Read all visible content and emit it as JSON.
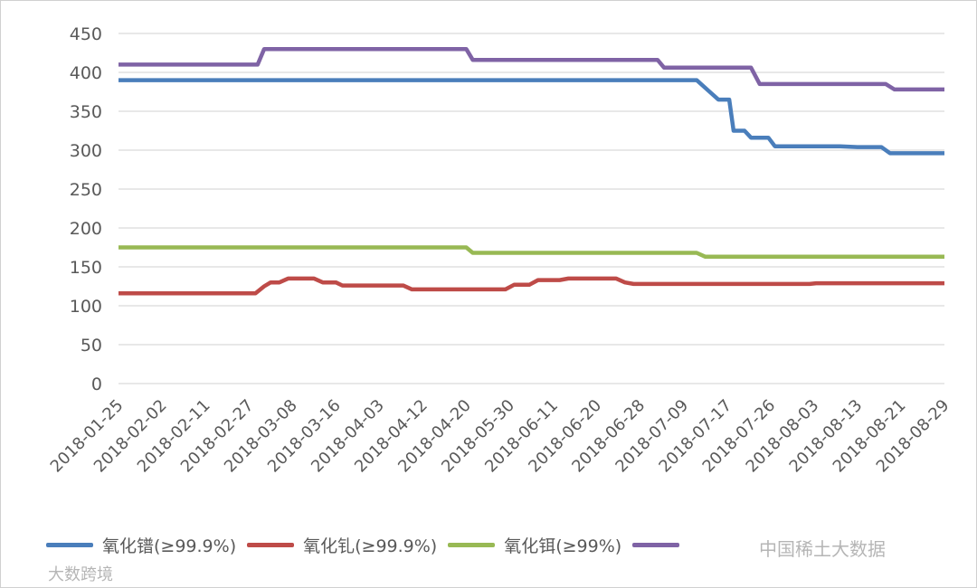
{
  "chart_data": {
    "type": "line",
    "title": "",
    "xlabel": "",
    "ylabel": "",
    "ylim": [
      0,
      450
    ],
    "yticks": [
      0,
      50,
      100,
      150,
      200,
      250,
      300,
      350,
      400,
      450
    ],
    "grid": "horizontal",
    "legend_position": "bottom",
    "x": [
      "2018-01-25",
      "2018-02-02",
      "2018-02-11",
      "2018-02-27",
      "2018-03-08",
      "2018-03-16",
      "2018-04-03",
      "2018-04-12",
      "2018-04-20",
      "2018-05-30",
      "2018-06-11",
      "2018-06-20",
      "2018-06-28",
      "2018-07-09",
      "2018-07-17",
      "2018-07-26",
      "2018-08-03",
      "2018-08-13",
      "2018-08-21",
      "2018-08-29"
    ],
    "series": [
      {
        "name": "氧化镨(≥99.9%)",
        "color": "#4a7ebb",
        "points": [
          [
            0,
            390
          ],
          [
            13.3,
            390
          ],
          [
            13.6,
            375
          ],
          [
            13.8,
            365
          ],
          [
            14.05,
            365
          ],
          [
            14.15,
            325
          ],
          [
            14.4,
            325
          ],
          [
            14.55,
            316
          ],
          [
            14.95,
            316
          ],
          [
            15.1,
            305
          ],
          [
            16.6,
            305
          ],
          [
            17.0,
            304
          ],
          [
            17.55,
            304
          ],
          [
            17.75,
            296
          ],
          [
            19,
            296
          ]
        ]
      },
      {
        "name": "氧化钆(≥99.9%)",
        "color": "#be4b48",
        "points": [
          [
            0,
            116
          ],
          [
            3.15,
            116
          ],
          [
            3.35,
            125
          ],
          [
            3.5,
            130
          ],
          [
            3.7,
            130
          ],
          [
            3.9,
            135
          ],
          [
            4.5,
            135
          ],
          [
            4.7,
            130
          ],
          [
            5.0,
            130
          ],
          [
            5.15,
            126
          ],
          [
            6.55,
            126
          ],
          [
            6.75,
            121
          ],
          [
            8.9,
            121
          ],
          [
            9.1,
            127
          ],
          [
            9.45,
            127
          ],
          [
            9.65,
            133
          ],
          [
            10.15,
            133
          ],
          [
            10.35,
            135
          ],
          [
            11.45,
            135
          ],
          [
            11.65,
            130
          ],
          [
            11.85,
            128
          ],
          [
            14.0,
            128
          ],
          [
            15.0,
            128
          ],
          [
            15.9,
            128
          ],
          [
            16.05,
            129
          ],
          [
            19,
            129
          ]
        ]
      },
      {
        "name": "氧化铒(≥99%)",
        "color": "#98b954",
        "points": [
          [
            0,
            175
          ],
          [
            8.0,
            175
          ],
          [
            8.15,
            168
          ],
          [
            13.3,
            168
          ],
          [
            13.5,
            163
          ],
          [
            19,
            163
          ]
        ]
      },
      {
        "name": "",
        "color": "#7f63a5",
        "points": [
          [
            0,
            410
          ],
          [
            3.2,
            410
          ],
          [
            3.35,
            430
          ],
          [
            8.0,
            430
          ],
          [
            8.15,
            416
          ],
          [
            12.4,
            416
          ],
          [
            12.55,
            406
          ],
          [
            14.55,
            406
          ],
          [
            14.75,
            385
          ],
          [
            17.65,
            385
          ],
          [
            17.85,
            378
          ],
          [
            19,
            378
          ]
        ]
      }
    ]
  },
  "watermarks": {
    "bottom_right": "中国稀土大数据",
    "bottom_left": "大数跨境"
  }
}
